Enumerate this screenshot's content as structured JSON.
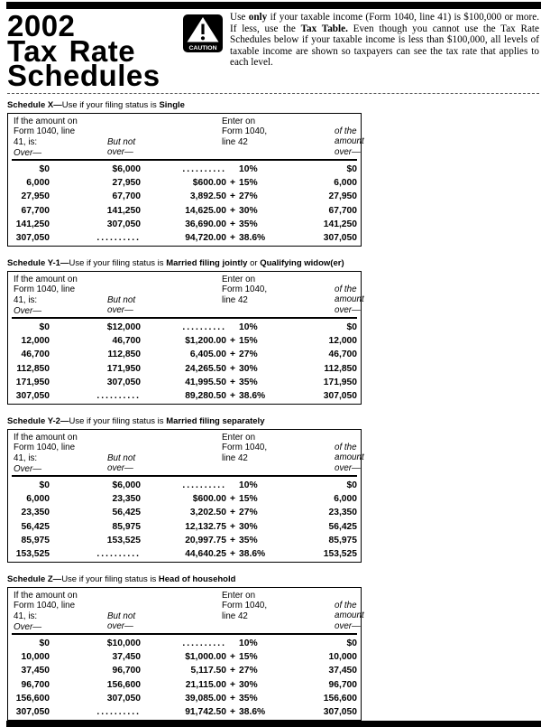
{
  "page": {
    "masthead": {
      "title_lines": [
        "2002",
        "Tax Rate",
        "Schedules"
      ],
      "caution_badge": "CAUTION",
      "notice_segments": [
        {
          "text": "Use ",
          "bold": false
        },
        {
          "text": "only",
          "bold": true
        },
        {
          "text": " if your taxable income (Form 1040, line 41) is $100,000 or more. If less, use the ",
          "bold": false
        },
        {
          "text": "Tax Table.",
          "bold": true
        },
        {
          "text": " Even though you cannot use the Tax Rate Schedules below if your taxable income is less than $100,000, all levels of taxable income are shown so taxpayers can see the tax rate that applies to each level.",
          "bold": false
        }
      ]
    },
    "colors": {
      "ink": "#000000",
      "paper": "#ffffff"
    }
  },
  "table_headers": {
    "col1_lines": [
      "If the amount on",
      "Form 1040, line",
      "41, is:"
    ],
    "col1_over": "Over—",
    "col2_lines": [
      "But not",
      "over—"
    ],
    "col3_lines": [
      "Enter on",
      "Form 1040,",
      "line 42"
    ],
    "col4_lines": [
      "of the",
      "amount",
      "over—"
    ]
  },
  "schedules": [
    {
      "label_segments": [
        {
          "text": "Schedule X—",
          "bold": true
        },
        {
          "text": "Use if your filing status is ",
          "bold": false
        },
        {
          "text": "Single",
          "bold": true
        }
      ],
      "rows": [
        {
          "over": "$0",
          "but_not_over": "$6,000",
          "tax_amount": "..........",
          "plus": "",
          "rate": "10%",
          "of_amount_over": "$0"
        },
        {
          "over": "6,000",
          "but_not_over": "27,950",
          "tax_amount": "$600.00",
          "plus": "+",
          "rate": "15%",
          "of_amount_over": "6,000"
        },
        {
          "over": "27,950",
          "but_not_over": "67,700",
          "tax_amount": "3,892.50",
          "plus": "+",
          "rate": "27%",
          "of_amount_over": "27,950"
        },
        {
          "over": "67,700",
          "but_not_over": "141,250",
          "tax_amount": "14,625.00",
          "plus": "+",
          "rate": "30%",
          "of_amount_over": "67,700"
        },
        {
          "over": "141,250",
          "but_not_over": "307,050",
          "tax_amount": "36,690.00",
          "plus": "+",
          "rate": "35%",
          "of_amount_over": "141,250"
        },
        {
          "over": "307,050",
          "but_not_over": "..........",
          "tax_amount": "94,720.00",
          "plus": "+",
          "rate": "38.6%",
          "of_amount_over": "307,050"
        }
      ]
    },
    {
      "label_segments": [
        {
          "text": "Schedule Y-1—",
          "bold": true
        },
        {
          "text": "Use if your filing status is ",
          "bold": false
        },
        {
          "text": "Married filing jointly",
          "bold": true
        },
        {
          "text": " or ",
          "bold": false
        },
        {
          "text": "Qualifying widow(er)",
          "bold": true
        }
      ],
      "rows": [
        {
          "over": "$0",
          "but_not_over": "$12,000",
          "tax_amount": "..........",
          "plus": "",
          "rate": "10%",
          "of_amount_over": "$0"
        },
        {
          "over": "12,000",
          "but_not_over": "46,700",
          "tax_amount": "$1,200.00",
          "plus": "+",
          "rate": "15%",
          "of_amount_over": "12,000"
        },
        {
          "over": "46,700",
          "but_not_over": "112,850",
          "tax_amount": "6,405.00",
          "plus": "+",
          "rate": "27%",
          "of_amount_over": "46,700"
        },
        {
          "over": "112,850",
          "but_not_over": "171,950",
          "tax_amount": "24,265.50",
          "plus": "+",
          "rate": "30%",
          "of_amount_over": "112,850"
        },
        {
          "over": "171,950",
          "but_not_over": "307,050",
          "tax_amount": "41,995.50",
          "plus": "+",
          "rate": "35%",
          "of_amount_over": "171,950"
        },
        {
          "over": "307,050",
          "but_not_over": "..........",
          "tax_amount": "89,280.50",
          "plus": "+",
          "rate": "38.6%",
          "of_amount_over": "307,050"
        }
      ]
    },
    {
      "label_segments": [
        {
          "text": "Schedule Y-2—",
          "bold": true
        },
        {
          "text": "Use if your filing status is ",
          "bold": false
        },
        {
          "text": "Married filing separately",
          "bold": true
        }
      ],
      "rows": [
        {
          "over": "$0",
          "but_not_over": "$6,000",
          "tax_amount": "..........",
          "plus": "",
          "rate": "10%",
          "of_amount_over": "$0"
        },
        {
          "over": "6,000",
          "but_not_over": "23,350",
          "tax_amount": "$600.00",
          "plus": "+",
          "rate": "15%",
          "of_amount_over": "6,000"
        },
        {
          "over": "23,350",
          "but_not_over": "56,425",
          "tax_amount": "3,202.50",
          "plus": "+",
          "rate": "27%",
          "of_amount_over": "23,350"
        },
        {
          "over": "56,425",
          "but_not_over": "85,975",
          "tax_amount": "12,132.75",
          "plus": "+",
          "rate": "30%",
          "of_amount_over": "56,425"
        },
        {
          "over": "85,975",
          "but_not_over": "153,525",
          "tax_amount": "20,997.75",
          "plus": "+",
          "rate": "35%",
          "of_amount_over": "85,975"
        },
        {
          "over": "153,525",
          "but_not_over": "..........",
          "tax_amount": "44,640.25",
          "plus": "+",
          "rate": "38.6%",
          "of_amount_over": "153,525"
        }
      ]
    },
    {
      "label_segments": [
        {
          "text": "Schedule Z—",
          "bold": true
        },
        {
          "text": "Use if your filing status is ",
          "bold": false
        },
        {
          "text": "Head of household",
          "bold": true
        }
      ],
      "rows": [
        {
          "over": "$0",
          "but_not_over": "$10,000",
          "tax_amount": "..........",
          "plus": "",
          "rate": "10%",
          "of_amount_over": "$0"
        },
        {
          "over": "10,000",
          "but_not_over": "37,450",
          "tax_amount": "$1,000.00",
          "plus": "+",
          "rate": "15%",
          "of_amount_over": "10,000"
        },
        {
          "over": "37,450",
          "but_not_over": "96,700",
          "tax_amount": "5,117.50",
          "plus": "+",
          "rate": "27%",
          "of_amount_over": "37,450"
        },
        {
          "over": "96,700",
          "but_not_over": "156,600",
          "tax_amount": "21,115.00",
          "plus": "+",
          "rate": "30%",
          "of_amount_over": "96,700"
        },
        {
          "over": "156,600",
          "but_not_over": "307,050",
          "tax_amount": "39,085.00",
          "plus": "+",
          "rate": "35%",
          "of_amount_over": "156,600"
        },
        {
          "over": "307,050",
          "but_not_over": "..........",
          "tax_amount": "91,742.50",
          "plus": "+",
          "rate": "38.6%",
          "of_amount_over": "307,050"
        }
      ]
    }
  ]
}
